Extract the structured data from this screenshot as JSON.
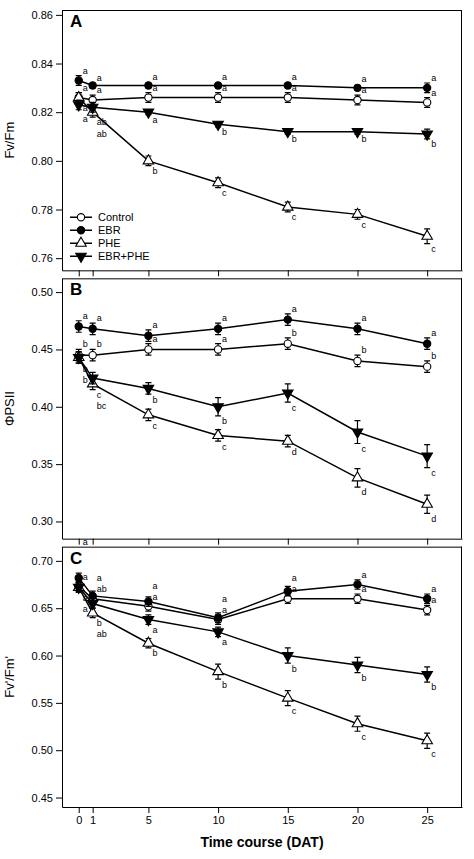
{
  "chart_data": [
    {
      "type": "line",
      "title": "A",
      "ylabel": "Fv/Fm",
      "x": [
        0,
        1,
        5,
        10,
        15,
        20,
        25
      ],
      "xlim": [
        -1.2,
        27.5
      ],
      "xticks": [
        0,
        1,
        5,
        10,
        15,
        20,
        25
      ],
      "ylim": [
        0.755,
        0.862
      ],
      "yticks": [
        0.76,
        0.78,
        {
          "value": 0.8,
          "label": "0.80"
        },
        0.82,
        0.84,
        0.86
      ],
      "tick_labels": "y",
      "legend": "lower left",
      "series": [
        {
          "name": "Control",
          "color": "#000000",
          "marker": "open-circle",
          "values": [
            0.826,
            0.825,
            0.826,
            0.826,
            0.826,
            0.825,
            0.824
          ],
          "error": [
            0.002,
            0.002,
            0.002,
            0.002,
            0.002,
            0.002,
            0.002
          ],
          "annotations": [
            "a",
            "a",
            "a",
            "a",
            "a",
            "a",
            "a"
          ]
        },
        {
          "name": "EBR",
          "color": "#000000",
          "marker": "circle",
          "values": [
            0.833,
            0.831,
            0.831,
            0.831,
            0.831,
            0.83,
            0.83
          ],
          "error": [
            0.002,
            0.001,
            0.001,
            0.001,
            0.001,
            0.001,
            0.002
          ],
          "annotations": [
            "a",
            "a",
            "a",
            "a",
            "a",
            "a",
            "a"
          ]
        },
        {
          "name": "PHE",
          "color": "#000000",
          "marker": "open-triangle-up",
          "values": [
            0.826,
            0.82,
            0.8,
            0.791,
            0.781,
            0.778,
            0.769
          ],
          "error": [
            0.002,
            0.002,
            0.002,
            0.002,
            0.002,
            0.002,
            0.003
          ],
          "annotations": [
            "a",
            "ab",
            "b",
            "c",
            "c",
            "c",
            "c"
          ]
        },
        {
          "name": "EBR+PHE",
          "color": "#000000",
          "marker": "triangle-down",
          "values": [
            0.823,
            0.822,
            0.82,
            0.815,
            0.812,
            0.812,
            0.811
          ],
          "error": [
            0.002,
            0.002,
            0.001,
            0.001,
            0.001,
            0.001,
            0.002
          ],
          "annotations": [
            "a",
            "ab",
            "a",
            "b",
            "b",
            "b",
            "b"
          ]
        }
      ]
    },
    {
      "type": "line",
      "title": "B",
      "ylabel": "ΦPSII",
      "x": [
        0,
        1,
        5,
        10,
        15,
        20,
        25
      ],
      "xlim": [
        -1.2,
        27.5
      ],
      "xticks": [
        0,
        1,
        5,
        10,
        15,
        20,
        25
      ],
      "ylim": [
        0.285,
        0.512
      ],
      "yticks": [
        {
          "value": 0.3,
          "label": "0.30"
        },
        0.35,
        {
          "value": 0.4,
          "label": "0.40"
        },
        0.45,
        {
          "value": 0.5,
          "label": "0.50"
        }
      ],
      "tick_labels": "y",
      "series": [
        {
          "color": "#000000",
          "marker": "open-circle",
          "values": [
            0.445,
            0.445,
            0.45,
            0.45,
            0.455,
            0.44,
            0.435
          ],
          "error": [
            0.005,
            0.005,
            0.005,
            0.005,
            0.005,
            0.005,
            0.005
          ],
          "annotations": [
            "b",
            "b",
            "a",
            "a",
            "b",
            "b",
            "b"
          ]
        },
        {
          "color": "#000000",
          "marker": "circle",
          "values": [
            0.47,
            0.468,
            0.462,
            0.468,
            0.476,
            0.468,
            0.455
          ],
          "error": [
            0.005,
            0.005,
            0.005,
            0.005,
            0.005,
            0.005,
            0.005
          ],
          "annotations": [
            "a",
            "a",
            "a",
            "a",
            "a",
            "a",
            "a"
          ]
        },
        {
          "color": "#000000",
          "marker": "open-triangle-up",
          "values": [
            0.443,
            0.42,
            0.393,
            0.375,
            0.37,
            0.338,
            0.315
          ],
          "error": [
            0.005,
            0.005,
            0.005,
            0.005,
            0.005,
            0.008,
            0.008
          ],
          "annotations": [
            "b",
            "c",
            "c",
            "c",
            "d",
            "d",
            "d"
          ]
        },
        {
          "color": "#000000",
          "marker": "triangle-down",
          "values": [
            0.443,
            0.425,
            0.416,
            0.4,
            0.412,
            0.378,
            0.357
          ],
          "error": [
            0.005,
            0.005,
            0.005,
            0.008,
            0.008,
            0.01,
            0.01
          ],
          "annotations": [
            "b",
            "bc",
            "b",
            "b",
            "c",
            "c",
            "c"
          ]
        }
      ]
    },
    {
      "type": "line",
      "title": "C",
      "ylabel": "Fv'/Fm'",
      "xlabel": "Time course (DAT)",
      "x": [
        0,
        1,
        5,
        10,
        15,
        20,
        25
      ],
      "xlim": [
        -1.2,
        27.5
      ],
      "xticks": [
        0,
        1,
        5,
        10,
        15,
        20,
        25
      ],
      "ylim": [
        0.44,
        0.715
      ],
      "yticks": [
        0.45,
        {
          "value": 0.5,
          "label": "0.50"
        },
        0.55,
        {
          "value": 0.6,
          "label": "0.60"
        },
        0.65,
        {
          "value": 0.7,
          "label": "0.70"
        }
      ],
      "series": [
        {
          "color": "#000000",
          "marker": "open-circle",
          "values": [
            0.673,
            0.66,
            0.652,
            0.638,
            0.66,
            0.66,
            0.648
          ],
          "error": [
            0.005,
            0.005,
            0.005,
            0.005,
            0.005,
            0.005,
            0.005
          ],
          "annotations": [
            "a",
            "ab",
            "a",
            "a",
            "a",
            "a",
            "a"
          ]
        },
        {
          "color": "#000000",
          "marker": "circle",
          "values": [
            0.682,
            0.663,
            0.657,
            0.64,
            0.668,
            0.675,
            0.66
          ],
          "error": [
            0.005,
            0.005,
            0.005,
            0.005,
            0.005,
            0.005,
            0.005
          ],
          "annotations": [
            "a",
            "a",
            "a",
            "a",
            "a",
            "a",
            "a"
          ]
        },
        {
          "color": "#000000",
          "marker": "open-triangle-up",
          "values": [
            0.672,
            0.645,
            0.613,
            0.583,
            0.555,
            0.528,
            0.51
          ],
          "error": [
            0.005,
            0.005,
            0.005,
            0.008,
            0.008,
            0.008,
            0.008
          ],
          "annotations": [
            "a",
            "b",
            "b",
            "b",
            "c",
            "c",
            "c"
          ]
        },
        {
          "color": "#000000",
          "marker": "triangle-down",
          "values": [
            0.672,
            0.655,
            0.638,
            0.625,
            0.6,
            0.59,
            0.58
          ],
          "error": [
            0.005,
            0.005,
            0.005,
            0.005,
            0.008,
            0.008,
            0.008
          ],
          "annotations": [
            "a",
            "ab",
            "a",
            "a",
            "b",
            "b",
            "b"
          ]
        }
      ]
    }
  ]
}
